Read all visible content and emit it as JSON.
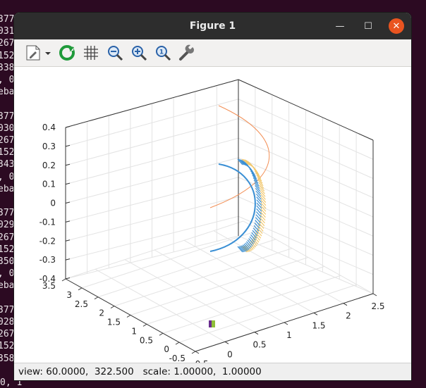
{
  "terminal": {
    "lines": [
      "377",
      "031",
      "267",
      "152",
      "338",
      ", 0",
      "eba",
      "",
      "377",
      "030",
      "267",
      "152",
      "343",
      ", 0",
      "eba",
      "",
      "377",
      "029",
      "267",
      "152",
      "350",
      ", 0",
      "eba",
      "",
      "377",
      "028",
      "267",
      "152",
      "358"
    ],
    "bottom_line": "0, 1"
  },
  "window": {
    "title": "Figure 1",
    "minimize_label": "—",
    "maximize_label": "☐",
    "close_label": "✕"
  },
  "toolbar": {
    "icons": [
      "export-icon",
      "replot-icon",
      "grid-icon",
      "zoom-out-icon",
      "zoom-in-icon",
      "zoom-reset-icon",
      "settings-icon"
    ]
  },
  "status": {
    "text": "view: 60.0000,  322.500   scale: 1.00000,  1.00000"
  },
  "chart_data": {
    "type": "line",
    "view": "3d",
    "z_ticks": [
      "0.4",
      "0.3",
      "0.2",
      "0.1",
      "0",
      "-0.1",
      "-0.2",
      "-0.3",
      "-0.4"
    ],
    "left_axis_ticks": [
      "3.5",
      "3",
      "2.5",
      "2",
      "1.5",
      "1",
      "0.5",
      "0",
      "-0.5"
    ],
    "right_axis_ticks": [
      "-0.5",
      "0",
      "0.5",
      "1",
      "1.5",
      "2",
      "2.5"
    ],
    "grid": true,
    "series": [
      {
        "color": "#f28e54"
      },
      {
        "color": "#f2c86e"
      },
      {
        "color": "#3a8fd4"
      },
      {
        "color": "#6a2d8f"
      },
      {
        "color": "#8fbf3a"
      }
    ]
  }
}
